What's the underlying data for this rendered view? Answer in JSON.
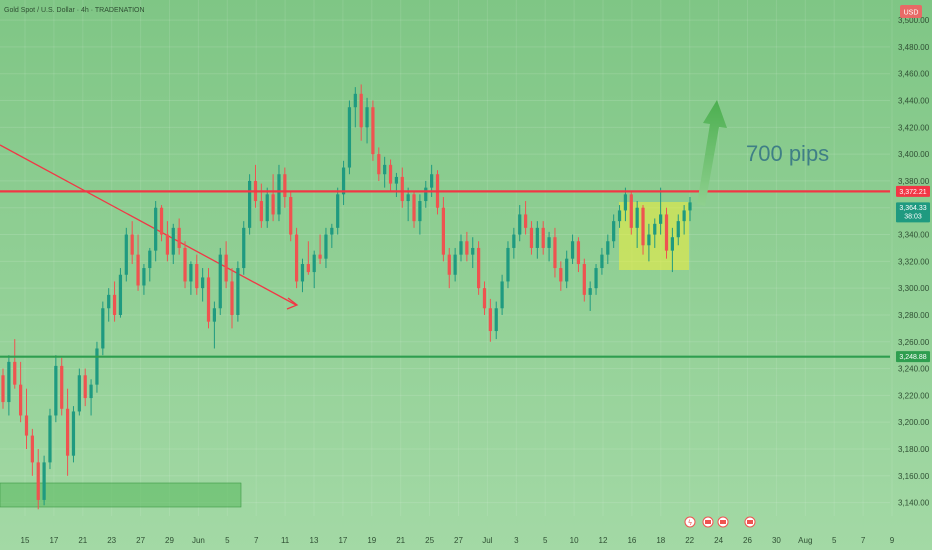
{
  "chart_data": {
    "type": "candlestick",
    "title": "Gold Spot / U.S. Dollar · 4h · TRADENATION",
    "currency": "USD",
    "ylim": [
      3130,
      3515
    ],
    "y_ticks": [
      3140,
      3160,
      3180,
      3200,
      3220,
      3240,
      3260,
      3280,
      3300,
      3320,
      3340,
      3360,
      3380,
      3400,
      3420,
      3440,
      3460,
      3480,
      3500
    ],
    "x_ticks": [
      "15",
      "17",
      "21",
      "23",
      "27",
      "29",
      "Jun",
      "5",
      "7",
      "11",
      "13",
      "17",
      "19",
      "21",
      "25",
      "27",
      "Jul",
      "3",
      "5",
      "10",
      "12",
      "16",
      "18",
      "22",
      "24",
      "26",
      "30",
      "Aug",
      "5",
      "7",
      "9"
    ],
    "price_labels": {
      "resistance": "3,372.21",
      "current": "3,364.33",
      "countdown": "38:03",
      "support": "3,248.88"
    },
    "levels": [
      {
        "name": "resistance",
        "value": 3372.21,
        "color": "#f23645"
      },
      {
        "name": "support",
        "value": 3248.88,
        "color": "#2e9e4f"
      }
    ],
    "annotation_text": "700 pips",
    "colors": {
      "up": "#1f9a80",
      "down": "#ef5350",
      "background_top": "#84c98a",
      "background_bottom": "#9fd7a2"
    },
    "candles": [
      [
        3235,
        3240,
        3210,
        3215
      ],
      [
        3215,
        3250,
        3205,
        3245
      ],
      [
        3245,
        3262,
        3225,
        3228
      ],
      [
        3228,
        3245,
        3200,
        3205
      ],
      [
        3205,
        3225,
        3180,
        3190
      ],
      [
        3190,
        3195,
        3160,
        3170
      ],
      [
        3170,
        3180,
        3135,
        3142
      ],
      [
        3142,
        3175,
        3138,
        3170
      ],
      [
        3170,
        3210,
        3165,
        3205
      ],
      [
        3205,
        3250,
        3200,
        3242
      ],
      [
        3242,
        3248,
        3205,
        3210
      ],
      [
        3210,
        3225,
        3160,
        3175
      ],
      [
        3175,
        3212,
        3170,
        3208
      ],
      [
        3208,
        3240,
        3205,
        3235
      ],
      [
        3235,
        3240,
        3212,
        3218
      ],
      [
        3218,
        3232,
        3205,
        3228
      ],
      [
        3228,
        3260,
        3222,
        3255
      ],
      [
        3255,
        3290,
        3250,
        3285
      ],
      [
        3285,
        3300,
        3275,
        3295
      ],
      [
        3295,
        3305,
        3275,
        3280
      ],
      [
        3280,
        3315,
        3278,
        3310
      ],
      [
        3310,
        3345,
        3305,
        3340
      ],
      [
        3340,
        3350,
        3318,
        3325
      ],
      [
        3325,
        3340,
        3298,
        3302
      ],
      [
        3302,
        3318,
        3295,
        3315
      ],
      [
        3315,
        3330,
        3305,
        3328
      ],
      [
        3328,
        3365,
        3320,
        3360
      ],
      [
        3360,
        3362,
        3335,
        3340
      ],
      [
        3340,
        3350,
        3320,
        3325
      ],
      [
        3325,
        3348,
        3318,
        3345
      ],
      [
        3345,
        3352,
        3325,
        3330
      ],
      [
        3330,
        3335,
        3300,
        3305
      ],
      [
        3305,
        3320,
        3295,
        3318
      ],
      [
        3318,
        3325,
        3295,
        3300
      ],
      [
        3300,
        3315,
        3290,
        3308
      ],
      [
        3308,
        3315,
        3270,
        3275
      ],
      [
        3275,
        3290,
        3255,
        3285
      ],
      [
        3285,
        3330,
        3280,
        3325
      ],
      [
        3325,
        3335,
        3300,
        3305
      ],
      [
        3305,
        3315,
        3270,
        3280
      ],
      [
        3280,
        3320,
        3275,
        3315
      ],
      [
        3315,
        3350,
        3310,
        3345
      ],
      [
        3345,
        3385,
        3340,
        3380
      ],
      [
        3380,
        3392,
        3360,
        3365
      ],
      [
        3365,
        3378,
        3345,
        3350
      ],
      [
        3350,
        3375,
        3345,
        3370
      ],
      [
        3370,
        3385,
        3350,
        3355
      ],
      [
        3355,
        3392,
        3350,
        3385
      ],
      [
        3385,
        3390,
        3360,
        3368
      ],
      [
        3368,
        3372,
        3335,
        3340
      ],
      [
        3340,
        3345,
        3300,
        3305
      ],
      [
        3305,
        3322,
        3297,
        3318
      ],
      [
        3318,
        3335,
        3310,
        3312
      ],
      [
        3312,
        3328,
        3300,
        3325
      ],
      [
        3325,
        3340,
        3318,
        3322
      ],
      [
        3322,
        3345,
        3315,
        3340
      ],
      [
        3340,
        3348,
        3330,
        3345
      ],
      [
        3345,
        3375,
        3340,
        3370
      ],
      [
        3370,
        3395,
        3362,
        3390
      ],
      [
        3390,
        3440,
        3385,
        3435
      ],
      [
        3435,
        3450,
        3420,
        3445
      ],
      [
        3445,
        3452,
        3410,
        3420
      ],
      [
        3420,
        3442,
        3408,
        3435
      ],
      [
        3435,
        3440,
        3395,
        3400
      ],
      [
        3400,
        3405,
        3380,
        3385
      ],
      [
        3385,
        3398,
        3375,
        3392
      ],
      [
        3392,
        3396,
        3372,
        3378
      ],
      [
        3378,
        3386,
        3368,
        3383
      ],
      [
        3383,
        3390,
        3360,
        3365
      ],
      [
        3365,
        3375,
        3350,
        3370
      ],
      [
        3370,
        3372,
        3345,
        3350
      ],
      [
        3350,
        3370,
        3340,
        3365
      ],
      [
        3365,
        3380,
        3360,
        3375
      ],
      [
        3375,
        3392,
        3368,
        3385
      ],
      [
        3385,
        3388,
        3355,
        3360
      ],
      [
        3360,
        3368,
        3320,
        3325
      ],
      [
        3325,
        3330,
        3300,
        3310
      ],
      [
        3310,
        3330,
        3305,
        3325
      ],
      [
        3325,
        3340,
        3320,
        3335
      ],
      [
        3335,
        3342,
        3320,
        3325
      ],
      [
        3325,
        3338,
        3315,
        3330
      ],
      [
        3330,
        3335,
        3295,
        3300
      ],
      [
        3300,
        3305,
        3280,
        3285
      ],
      [
        3285,
        3292,
        3260,
        3268
      ],
      [
        3268,
        3290,
        3262,
        3285
      ],
      [
        3285,
        3310,
        3280,
        3305
      ],
      [
        3305,
        3335,
        3300,
        3330
      ],
      [
        3330,
        3345,
        3322,
        3340
      ],
      [
        3340,
        3362,
        3335,
        3355
      ],
      [
        3355,
        3365,
        3340,
        3345
      ],
      [
        3345,
        3350,
        3325,
        3330
      ],
      [
        3330,
        3350,
        3322,
        3345
      ],
      [
        3345,
        3350,
        3325,
        3330
      ],
      [
        3330,
        3342,
        3320,
        3338
      ],
      [
        3338,
        3345,
        3308,
        3315
      ],
      [
        3315,
        3320,
        3298,
        3305
      ],
      [
        3305,
        3328,
        3300,
        3322
      ],
      [
        3322,
        3340,
        3318,
        3335
      ],
      [
        3335,
        3338,
        3312,
        3318
      ],
      [
        3318,
        3322,
        3290,
        3295
      ],
      [
        3295,
        3305,
        3283,
        3300
      ],
      [
        3300,
        3318,
        3295,
        3315
      ],
      [
        3315,
        3330,
        3310,
        3325
      ],
      [
        3325,
        3340,
        3318,
        3335
      ],
      [
        3335,
        3355,
        3330,
        3350
      ],
      [
        3350,
        3362,
        3345,
        3358
      ],
      [
        3358,
        3375,
        3350,
        3370
      ],
      [
        3370,
        3372,
        3340,
        3345
      ],
      [
        3345,
        3365,
        3330,
        3360
      ],
      [
        3360,
        3362,
        3325,
        3332
      ],
      [
        3332,
        3348,
        3320,
        3340
      ],
      [
        3340,
        3352,
        3330,
        3348
      ],
      [
        3348,
        3375,
        3340,
        3355
      ],
      [
        3355,
        3360,
        3322,
        3328
      ],
      [
        3328,
        3345,
        3312,
        3338
      ],
      [
        3338,
        3355,
        3332,
        3350
      ],
      [
        3350,
        3362,
        3340,
        3358
      ],
      [
        3358,
        3368,
        3350,
        3364
      ]
    ]
  }
}
